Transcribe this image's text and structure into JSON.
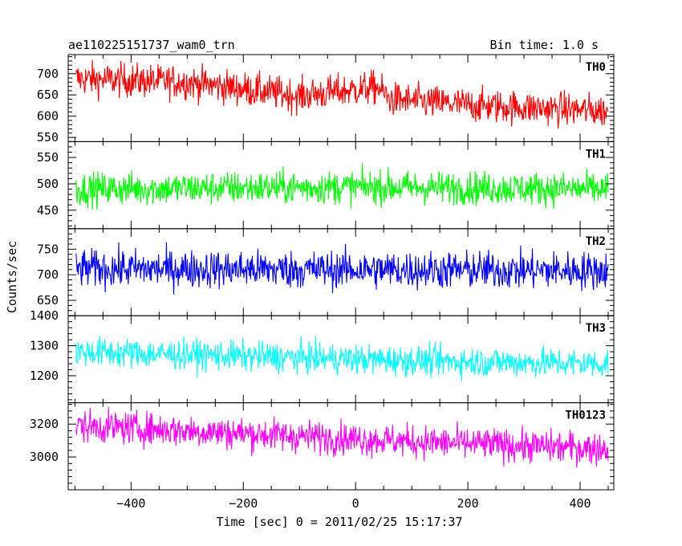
{
  "chart_data": {
    "type": "line",
    "title": "ae110225151737_wam0_trn",
    "subtitle": "Bin time: 1.0 s",
    "xlabel": "Time [sec] 0 = 2011/02/25 15:17:37",
    "ylabel": "Counts/sec",
    "x_range": [
      -512,
      460
    ],
    "x_ticks": [
      -400,
      -200,
      0,
      200,
      400
    ],
    "x_tick_labels": [
      "−400",
      "−200",
      "0",
      "200",
      "400"
    ],
    "data_x_range": [
      -498,
      450
    ],
    "bin_time_s": 1.0,
    "panels": [
      {
        "name": "TH0",
        "color": "#ff0000",
        "ylim": [
          540,
          745
        ],
        "yticks": [
          550,
          600,
          650,
          700
        ],
        "ytick_labels": [
          "550",
          "600",
          "650",
          "700"
        ],
        "trend": [
          [
            -498,
            688
          ],
          [
            -300,
            680
          ],
          [
            -100,
            648
          ],
          [
            40,
            668
          ],
          [
            60,
            640
          ],
          [
            200,
            626
          ],
          [
            450,
            612
          ]
        ],
        "noise": 28
      },
      {
        "name": "TH1",
        "color": "#00ff00",
        "ylim": [
          415,
          580
        ],
        "yticks": [
          450,
          500,
          550
        ],
        "ytick_labels": [
          "450",
          "500",
          "550"
        ],
        "trend": [
          [
            -498,
            490
          ],
          [
            0,
            494
          ],
          [
            450,
            490
          ]
        ],
        "noise": 22
      },
      {
        "name": "TH2",
        "color": "#0000ff",
        "ylim": [
          620,
          790
        ],
        "yticks": [
          650,
          700,
          750
        ],
        "ytick_labels": [
          "650",
          "700",
          "750"
        ],
        "trend": [
          [
            -498,
            712
          ],
          [
            0,
            710
          ],
          [
            450,
            708
          ]
        ],
        "noise": 26
      },
      {
        "name": "TH3",
        "color": "#00ffff",
        "ylim": [
          1110,
          1400
        ],
        "yticks": [
          1200,
          1300,
          1400
        ],
        "ytick_labels": [
          "1200",
          "1300",
          "1400"
        ],
        "trend": [
          [
            -498,
            1280
          ],
          [
            -200,
            1265
          ],
          [
            100,
            1250
          ],
          [
            450,
            1240
          ]
        ],
        "noise": 35
      },
      {
        "name": "TH0123",
        "color": "#ff00ff",
        "ylim": [
          2800,
          3330
        ],
        "yticks": [
          3000,
          3200
        ],
        "ytick_labels": [
          "3000",
          "3200"
        ],
        "trend": [
          [
            -498,
            3190
          ],
          [
            -300,
            3160
          ],
          [
            0,
            3110
          ],
          [
            200,
            3080
          ],
          [
            450,
            3050
          ]
        ],
        "noise": 70
      }
    ]
  }
}
